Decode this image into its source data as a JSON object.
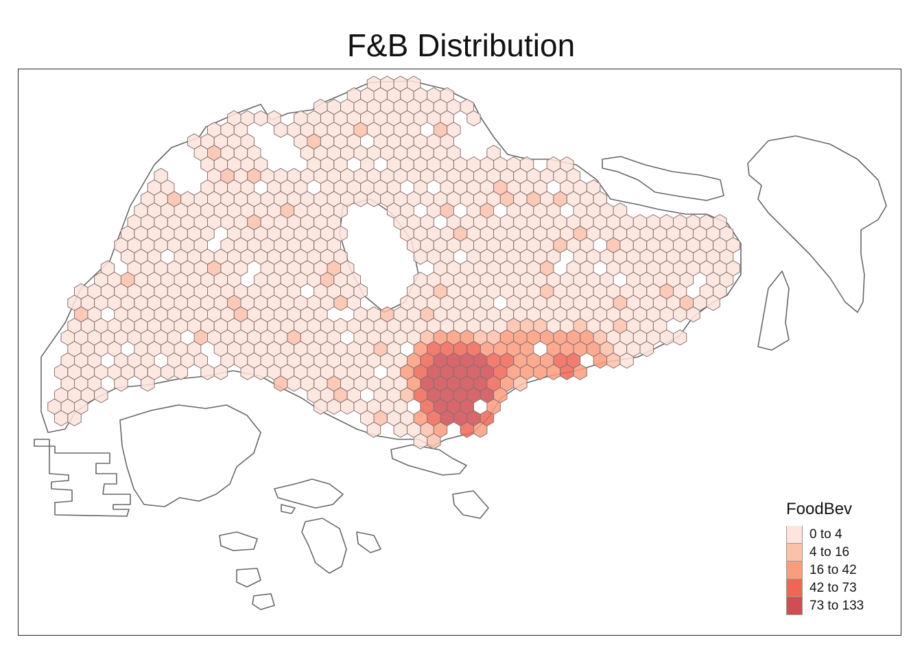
{
  "title": "F&B Distribution",
  "legend": {
    "title": "FoodBev",
    "classes": [
      {
        "label": "0 to 4",
        "color": "#fde4dc"
      },
      {
        "label": "4 to 16",
        "color": "#fcc1a9"
      },
      {
        "label": "16 to 42",
        "color": "#fb9c7c"
      },
      {
        "label": "42 to 73",
        "color": "#f06655"
      },
      {
        "label": "73 to 133",
        "color": "#cf4d53"
      }
    ]
  },
  "colors": {
    "outline": "#666666",
    "hex_border": "#8a7070",
    "frame": "#222222"
  }
}
